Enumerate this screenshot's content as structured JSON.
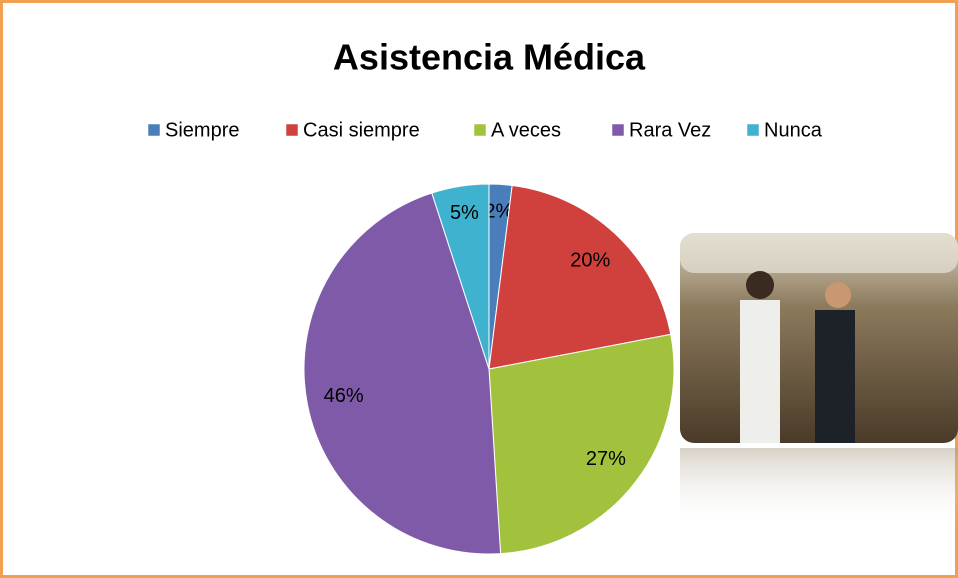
{
  "chart_data": {
    "type": "pie",
    "title": "Asistencia Médica",
    "categories": [
      "Siempre",
      "Casi siempre",
      "A veces",
      "Rara Vez",
      "Nunca"
    ],
    "values": [
      2,
      20,
      27,
      46,
      5
    ],
    "value_labels": [
      "2%",
      "20%",
      "27%",
      "46%",
      "5%"
    ],
    "colors": [
      "#4a7ebb",
      "#d0413d",
      "#a2c23e",
      "#7f5aa8",
      "#3fb2cf"
    ],
    "legend": "top"
  }
}
